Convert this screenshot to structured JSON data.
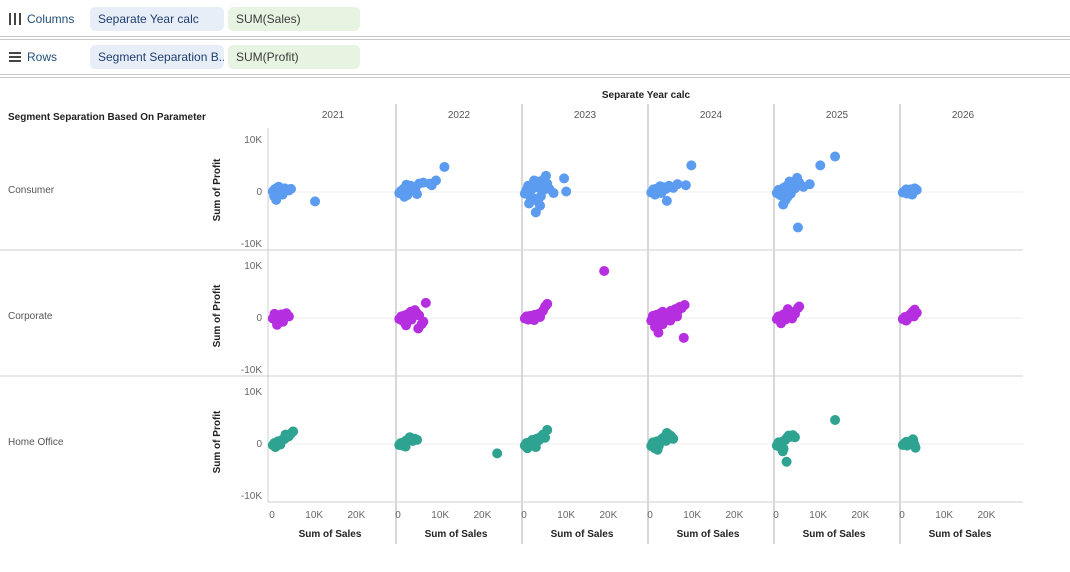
{
  "shelves": {
    "columns": {
      "label": "Columns",
      "pills": [
        "Separate Year calc",
        "SUM(Sales)"
      ]
    },
    "rows": {
      "label": "Rows",
      "pills": [
        "Segment Separation B...",
        "SUM(Profit)"
      ]
    }
  },
  "colors": {
    "Consumer": "#5b9bf0",
    "Corporate": "#b52ee0",
    "Home Office": "#2ea392"
  },
  "chart_data": {
    "type": "scatter",
    "title": "",
    "column_header": "Separate Year calc",
    "row_header": "Segment Separation Based On Parameter",
    "columns": [
      "2021",
      "2022",
      "2023",
      "2024",
      "2025",
      "2026"
    ],
    "rows": [
      "Consumer",
      "Corporate",
      "Home Office"
    ],
    "xlabel": "Sum of Sales",
    "ylabel": "Sum of Profit",
    "x_ticks": [
      0,
      10000,
      20000
    ],
    "x_tick_labels": [
      "0",
      "10K",
      "20K"
    ],
    "y_ticks": [
      -10000,
      0,
      10000
    ],
    "y_tick_labels": [
      "-10K",
      "0",
      "10K"
    ],
    "xlim": [
      -500,
      28000
    ],
    "ylim": [
      -11000,
      12500
    ],
    "grid": true,
    "points": {
      "Consumer": {
        "2021": [
          [
            200,
            100
          ],
          [
            600,
            500
          ],
          [
            900,
            -300
          ],
          [
            1200,
            800
          ],
          [
            1500,
            300
          ],
          [
            1800,
            200
          ],
          [
            2200,
            600
          ],
          [
            2600,
            400
          ],
          [
            3000,
            700
          ],
          [
            3500,
            500
          ],
          [
            4000,
            300
          ],
          [
            4500,
            600
          ],
          [
            1000,
            -1500
          ],
          [
            10200,
            -1800
          ],
          [
            500,
            -800
          ],
          [
            2500,
            -500
          ],
          [
            1600,
            1000
          ]
        ],
        "2022": [
          [
            300,
            -200
          ],
          [
            700,
            200
          ],
          [
            1000,
            -400
          ],
          [
            1300,
            600
          ],
          [
            1800,
            300
          ],
          [
            2200,
            -600
          ],
          [
            2600,
            800
          ],
          [
            3000,
            1200
          ],
          [
            3500,
            500
          ],
          [
            4200,
            900
          ],
          [
            5000,
            1600
          ],
          [
            6000,
            1800
          ],
          [
            7500,
            1600
          ],
          [
            8000,
            1300
          ],
          [
            9000,
            2200
          ],
          [
            11000,
            4800
          ],
          [
            1500,
            -900
          ],
          [
            4500,
            -400
          ],
          [
            2000,
            1400
          ]
        ],
        "2023": [
          [
            200,
            -300
          ],
          [
            600,
            400
          ],
          [
            1000,
            1200
          ],
          [
            1400,
            -800
          ],
          [
            1800,
            500
          ],
          [
            2200,
            -1200
          ],
          [
            2600,
            1500
          ],
          [
            3000,
            900
          ],
          [
            3300,
            -1800
          ],
          [
            3600,
            2000
          ],
          [
            4000,
            -800
          ],
          [
            4400,
            1200
          ],
          [
            4800,
            2500
          ],
          [
            5200,
            3100
          ],
          [
            5500,
            1600
          ],
          [
            6000,
            600
          ],
          [
            7000,
            -200
          ],
          [
            9500,
            2600
          ],
          [
            10000,
            100
          ],
          [
            2800,
            -3900
          ],
          [
            1200,
            -2200
          ],
          [
            3800,
            -2600
          ],
          [
            2400,
            2200
          ],
          [
            4600,
            400
          ]
        ],
        "2024": [
          [
            300,
            -100
          ],
          [
            800,
            500
          ],
          [
            1200,
            -500
          ],
          [
            1700,
            700
          ],
          [
            2200,
            300
          ],
          [
            2700,
            -200
          ],
          [
            3200,
            900
          ],
          [
            3800,
            600
          ],
          [
            4500,
            1200
          ],
          [
            5500,
            800
          ],
          [
            6500,
            1500
          ],
          [
            4000,
            -1700
          ],
          [
            8500,
            1300
          ],
          [
            9800,
            5100
          ],
          [
            2400,
            1100
          ],
          [
            1500,
            400
          ]
        ],
        "2025": [
          [
            200,
            -200
          ],
          [
            600,
            400
          ],
          [
            1000,
            -600
          ],
          [
            1400,
            300
          ],
          [
            1800,
            800
          ],
          [
            2200,
            -1600
          ],
          [
            2600,
            1200
          ],
          [
            3000,
            600
          ],
          [
            3500,
            -300
          ],
          [
            4000,
            1400
          ],
          [
            4500,
            700
          ],
          [
            5000,
            2700
          ],
          [
            5500,
            1800
          ],
          [
            6500,
            1000
          ],
          [
            8000,
            1500
          ],
          [
            10500,
            5100
          ],
          [
            14000,
            6800
          ],
          [
            5200,
            -6800
          ],
          [
            1700,
            -2400
          ],
          [
            3200,
            2000
          ],
          [
            2800,
            -900
          ]
        ],
        "2026": [
          [
            200,
            -100
          ],
          [
            700,
            200
          ],
          [
            1200,
            -300
          ],
          [
            1600,
            300
          ],
          [
            2100,
            500
          ],
          [
            2600,
            200
          ],
          [
            3000,
            700
          ],
          [
            3500,
            400
          ],
          [
            2400,
            -500
          ],
          [
            1000,
            500
          ]
        ]
      },
      "Corporate": {
        "2021": [
          [
            200,
            -100
          ],
          [
            600,
            300
          ],
          [
            1000,
            -500
          ],
          [
            1400,
            500
          ],
          [
            1800,
            200
          ],
          [
            2300,
            700
          ],
          [
            2800,
            400
          ],
          [
            3400,
            900
          ],
          [
            4000,
            300
          ],
          [
            1200,
            -1300
          ],
          [
            2600,
            -700
          ],
          [
            600,
            800
          ]
        ],
        "2022": [
          [
            300,
            -200
          ],
          [
            800,
            300
          ],
          [
            1200,
            -600
          ],
          [
            1600,
            500
          ],
          [
            2000,
            -300
          ],
          [
            2500,
            800
          ],
          [
            3000,
            1200
          ],
          [
            3600,
            600
          ],
          [
            4000,
            1500
          ],
          [
            4400,
            1000
          ],
          [
            5000,
            500
          ],
          [
            5600,
            -1200
          ],
          [
            6000,
            -700
          ],
          [
            6600,
            2900
          ],
          [
            1900,
            -1400
          ],
          [
            4800,
            -2000
          ],
          [
            3200,
            -300
          ]
        ],
        "2023": [
          [
            200,
            -100
          ],
          [
            600,
            300
          ],
          [
            1000,
            -300
          ],
          [
            1500,
            400
          ],
          [
            2000,
            200
          ],
          [
            2500,
            600
          ],
          [
            3000,
            300
          ],
          [
            3500,
            800
          ],
          [
            4000,
            900
          ],
          [
            4500,
            1400
          ],
          [
            5000,
            2200
          ],
          [
            5500,
            2700
          ],
          [
            19000,
            9000
          ],
          [
            2400,
            -400
          ],
          [
            3800,
            200
          ]
        ],
        "2024": [
          [
            300,
            -500
          ],
          [
            700,
            400
          ],
          [
            1100,
            -900
          ],
          [
            1500,
            600
          ],
          [
            2000,
            -600
          ],
          [
            2500,
            900
          ],
          [
            3000,
            1200
          ],
          [
            3500,
            -400
          ],
          [
            4000,
            700
          ],
          [
            4500,
            1000
          ],
          [
            5000,
            1400
          ],
          [
            5500,
            800
          ],
          [
            6000,
            1700
          ],
          [
            6500,
            1200
          ],
          [
            7000,
            2100
          ],
          [
            7500,
            1900
          ],
          [
            8200,
            2500
          ],
          [
            8000,
            -3800
          ],
          [
            2000,
            -2800
          ],
          [
            1200,
            -1700
          ],
          [
            3000,
            -1200
          ],
          [
            6400,
            300
          ],
          [
            4800,
            -500
          ]
        ],
        "2025": [
          [
            200,
            -200
          ],
          [
            600,
            300
          ],
          [
            1000,
            -500
          ],
          [
            1400,
            400
          ],
          [
            1800,
            700
          ],
          [
            2200,
            -300
          ],
          [
            2600,
            900
          ],
          [
            3000,
            1300
          ],
          [
            3500,
            600
          ],
          [
            4000,
            1100
          ],
          [
            4500,
            800
          ],
          [
            5200,
            1900
          ],
          [
            5500,
            2200
          ],
          [
            1200,
            -1000
          ],
          [
            2800,
            1700
          ],
          [
            3800,
            -100
          ]
        ],
        "2026": [
          [
            200,
            -200
          ],
          [
            700,
            200
          ],
          [
            1200,
            -300
          ],
          [
            1600,
            400
          ],
          [
            2000,
            700
          ],
          [
            2500,
            1200
          ],
          [
            3000,
            1600
          ],
          [
            3500,
            1000
          ],
          [
            1000,
            -500
          ],
          [
            2800,
            300
          ]
        ]
      },
      "Home Office": {
        "2021": [
          [
            200,
            -200
          ],
          [
            600,
            200
          ],
          [
            1000,
            -400
          ],
          [
            1400,
            500
          ],
          [
            1800,
            300
          ],
          [
            2400,
            800
          ],
          [
            3000,
            1000
          ],
          [
            3500,
            1300
          ],
          [
            4000,
            1500
          ],
          [
            4500,
            2000
          ],
          [
            5000,
            2400
          ],
          [
            800,
            -600
          ],
          [
            3200,
            1800
          ],
          [
            2000,
            -100
          ]
        ],
        "2022": [
          [
            300,
            -200
          ],
          [
            700,
            200
          ],
          [
            1100,
            -300
          ],
          [
            1500,
            400
          ],
          [
            2000,
            700
          ],
          [
            2500,
            900
          ],
          [
            3000,
            1100
          ],
          [
            3500,
            600
          ],
          [
            4000,
            1000
          ],
          [
            4500,
            800
          ],
          [
            23500,
            -1800
          ],
          [
            1800,
            -500
          ],
          [
            2800,
            1300
          ]
        ],
        "2023": [
          [
            200,
            -300
          ],
          [
            600,
            200
          ],
          [
            1000,
            -500
          ],
          [
            1500,
            400
          ],
          [
            2000,
            800
          ],
          [
            2500,
            -200
          ],
          [
            3000,
            1000
          ],
          [
            3500,
            700
          ],
          [
            4000,
            1400
          ],
          [
            4500,
            1800
          ],
          [
            5000,
            1200
          ],
          [
            5500,
            2700
          ],
          [
            800,
            -800
          ],
          [
            2800,
            -600
          ]
        ],
        "2024": [
          [
            300,
            -400
          ],
          [
            700,
            300
          ],
          [
            1100,
            -800
          ],
          [
            1600,
            500
          ],
          [
            2100,
            -300
          ],
          [
            2600,
            800
          ],
          [
            3000,
            1100
          ],
          [
            3500,
            1400
          ],
          [
            4000,
            2100
          ],
          [
            4500,
            1800
          ],
          [
            5000,
            1500
          ],
          [
            5500,
            1000
          ],
          [
            1800,
            -1100
          ],
          [
            3800,
            600
          ]
        ],
        "2025": [
          [
            200,
            -300
          ],
          [
            600,
            300
          ],
          [
            1000,
            -600
          ],
          [
            1400,
            400
          ],
          [
            1800,
            -900
          ],
          [
            2200,
            800
          ],
          [
            2600,
            1200
          ],
          [
            3000,
            1600
          ],
          [
            3500,
            1400
          ],
          [
            4000,
            1700
          ],
          [
            4500,
            1300
          ],
          [
            2500,
            -3400
          ],
          [
            14000,
            4600
          ],
          [
            1600,
            -1400
          ]
        ],
        "2026": [
          [
            200,
            -200
          ],
          [
            700,
            200
          ],
          [
            1200,
            -300
          ],
          [
            1700,
            400
          ],
          [
            2200,
            300
          ],
          [
            2700,
            500
          ],
          [
            3000,
            -200
          ],
          [
            2600,
            900
          ],
          [
            3200,
            -700
          ],
          [
            1000,
            400
          ]
        ]
      }
    }
  }
}
